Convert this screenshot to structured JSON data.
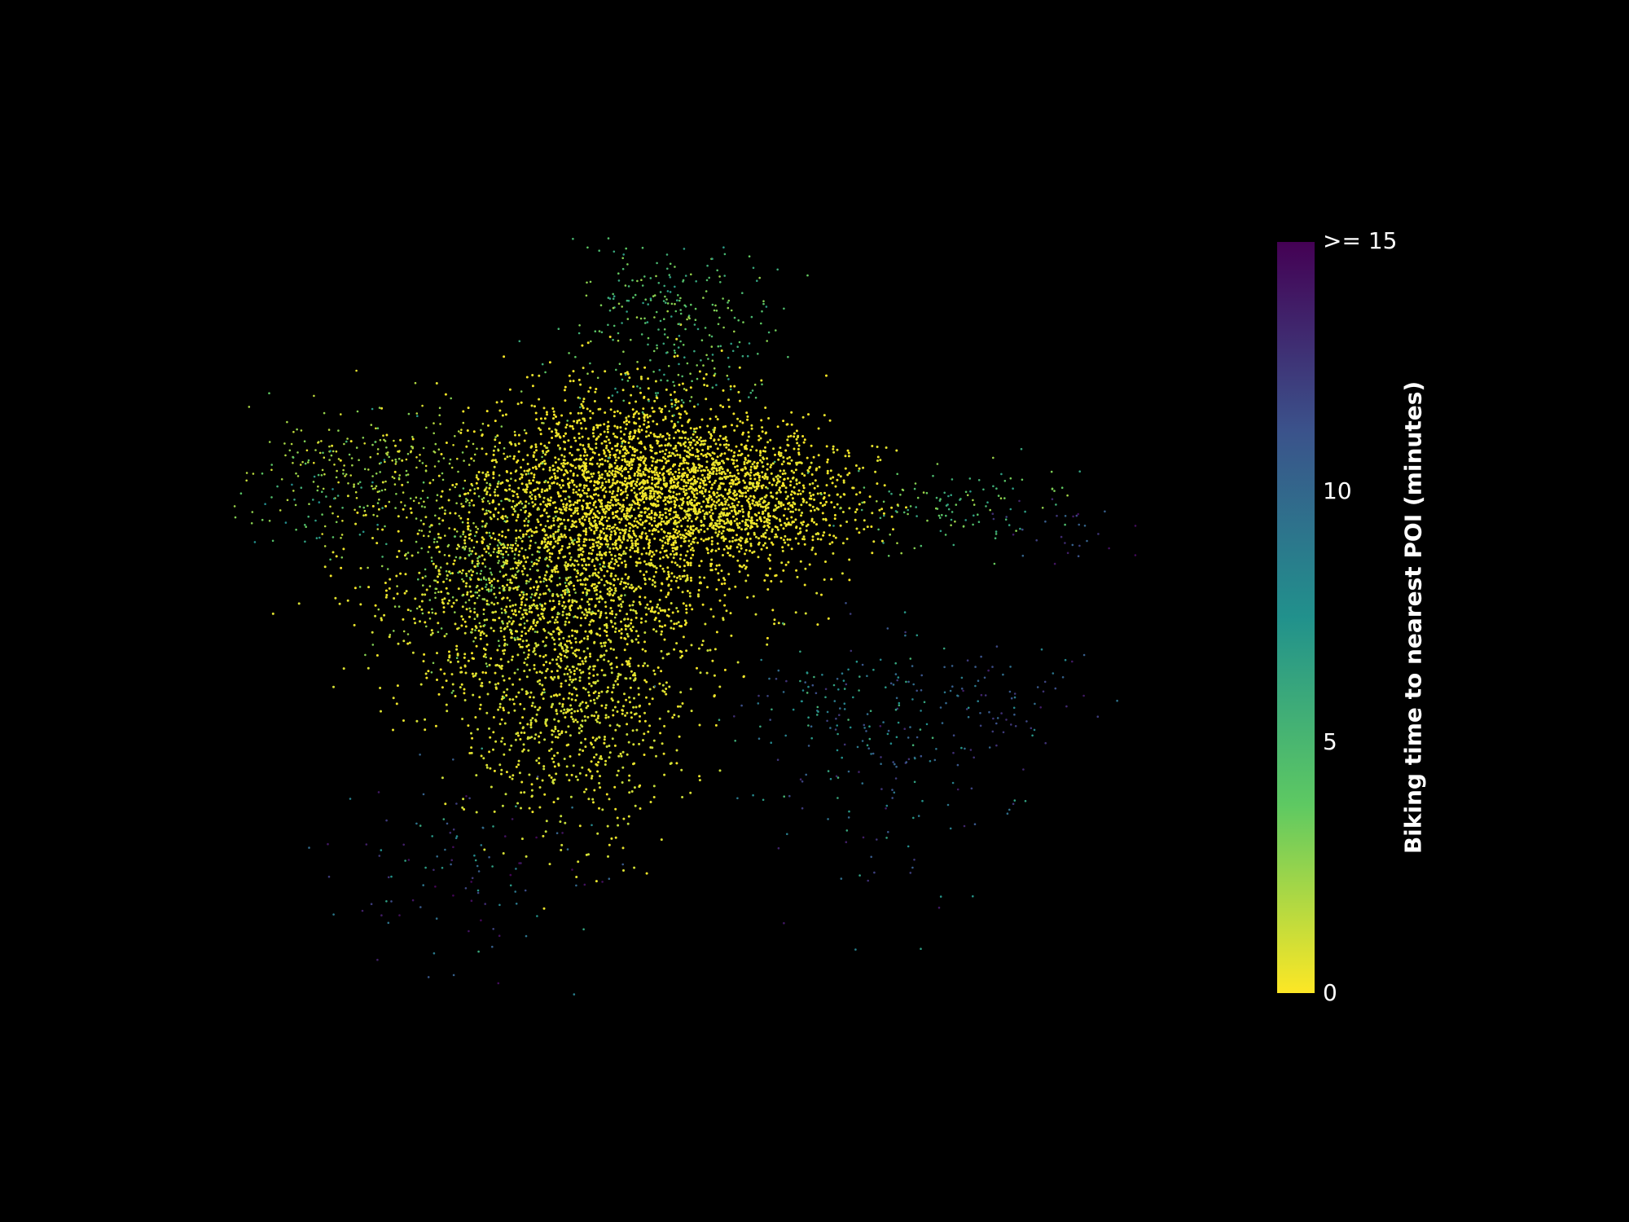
{
  "chart_data": {
    "type": "scatter",
    "title": "",
    "colorbar": {
      "label": "Biking time to nearest POI (minutes)",
      "colormap": "viridis_r",
      "range": [
        0,
        15
      ],
      "ticks": [
        {
          "value": 0,
          "label": "0"
        },
        {
          "value": 5,
          "label": "5"
        },
        {
          "value": 10,
          "label": "10"
        },
        {
          "value": 15,
          "label": ">= 15"
        }
      ]
    },
    "grid": false,
    "axes_visible": false,
    "background": "#000000",
    "colors": {
      "min": "#fde725",
      "q1": "#5ec962",
      "mid": "#21918c",
      "q3": "#3b528b",
      "max": "#440154"
    }
  }
}
